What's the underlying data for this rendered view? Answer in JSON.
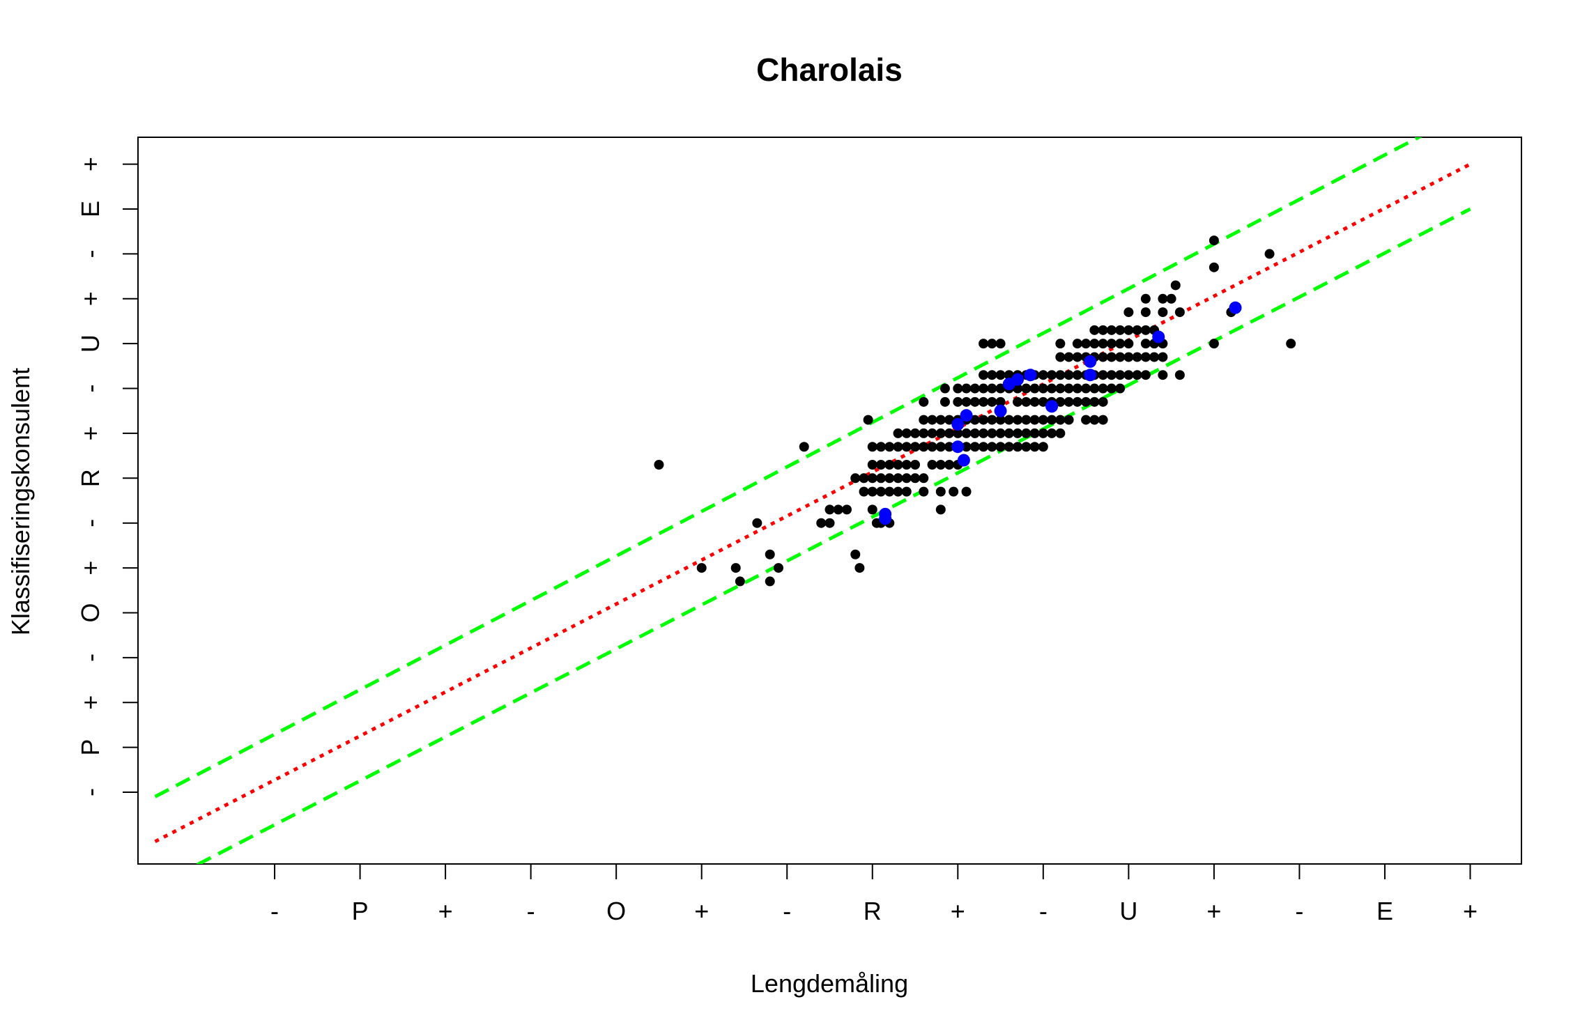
{
  "chart_data": {
    "type": "scatter",
    "title": "Charolais",
    "xlabel": "Lengdemåling",
    "ylabel": "Klassifiseringskonsulent",
    "x_ticks": [
      {
        "value": 1,
        "label": "-"
      },
      {
        "value": 2,
        "label": "P"
      },
      {
        "value": 3,
        "label": "+"
      },
      {
        "value": 4,
        "label": "-"
      },
      {
        "value": 5,
        "label": "O"
      },
      {
        "value": 6,
        "label": "+"
      },
      {
        "value": 7,
        "label": "-"
      },
      {
        "value": 8,
        "label": "R"
      },
      {
        "value": 9,
        "label": "+"
      },
      {
        "value": 10,
        "label": "-"
      },
      {
        "value": 11,
        "label": "U"
      },
      {
        "value": 12,
        "label": "+"
      },
      {
        "value": 13,
        "label": "-"
      },
      {
        "value": 14,
        "label": "E"
      },
      {
        "value": 15,
        "label": "+"
      }
    ],
    "y_ticks": [
      {
        "value": 1,
        "label": "-"
      },
      {
        "value": 2,
        "label": "P"
      },
      {
        "value": 3,
        "label": "+"
      },
      {
        "value": 4,
        "label": "-"
      },
      {
        "value": 5,
        "label": "O"
      },
      {
        "value": 6,
        "label": "+"
      },
      {
        "value": 7,
        "label": "-"
      },
      {
        "value": 8,
        "label": "R"
      },
      {
        "value": 9,
        "label": "+"
      },
      {
        "value": 10,
        "label": "-"
      },
      {
        "value": 11,
        "label": "U"
      },
      {
        "value": 12,
        "label": "+"
      },
      {
        "value": 13,
        "label": "-"
      },
      {
        "value": 14,
        "label": "E"
      },
      {
        "value": 15,
        "label": "+"
      }
    ],
    "xlim": [
      -0.6,
      15.6
    ],
    "ylim": [
      -0.6,
      15.6
    ],
    "grid": false,
    "series": [
      {
        "color": "#000000",
        "marker": "filled-circle",
        "points": [
          [
            5.5,
            8.3
          ],
          [
            6,
            6
          ],
          [
            6.4,
            6
          ],
          [
            6.45,
            5.7
          ],
          [
            6.65,
            7
          ],
          [
            6.8,
            5.7
          ],
          [
            6.8,
            6.3
          ],
          [
            6.9,
            6
          ],
          [
            7.2,
            8.7
          ],
          [
            7.4,
            7
          ],
          [
            7.5,
            7
          ],
          [
            7.5,
            7.3
          ],
          [
            7.6,
            7.3
          ],
          [
            7.7,
            7.3
          ],
          [
            7.8,
            6.3
          ],
          [
            7.85,
            6
          ],
          [
            7.95,
            9.3
          ],
          [
            7.8,
            8
          ],
          [
            7.9,
            8
          ],
          [
            8.0,
            8
          ],
          [
            8.1,
            8
          ],
          [
            8.2,
            8
          ],
          [
            8.3,
            8
          ],
          [
            8.4,
            8
          ],
          [
            8.5,
            8
          ],
          [
            8.6,
            8
          ],
          [
            7.9,
            7.7
          ],
          [
            8.0,
            7.7
          ],
          [
            8.1,
            7.7
          ],
          [
            8.2,
            7.7
          ],
          [
            8.3,
            7.7
          ],
          [
            8.4,
            7.7
          ],
          [
            8.6,
            7.7
          ],
          [
            8.0,
            7.3
          ],
          [
            8.05,
            7.0
          ],
          [
            8.1,
            7.0
          ],
          [
            8.2,
            7.0
          ],
          [
            8.0,
            8.3
          ],
          [
            8.1,
            8.3
          ],
          [
            8.2,
            8.3
          ],
          [
            8.3,
            8.3
          ],
          [
            8.4,
            8.3
          ],
          [
            8.5,
            8.3
          ],
          [
            8.7,
            8.3
          ],
          [
            8.8,
            8.3
          ],
          [
            8.9,
            8.3
          ],
          [
            9.0,
            8.3
          ],
          [
            8.8,
            7.7
          ],
          [
            8.95,
            7.7
          ],
          [
            9.1,
            7.7
          ],
          [
            8.8,
            7.3
          ],
          [
            8.0,
            8.7
          ],
          [
            8.1,
            8.7
          ],
          [
            8.2,
            8.7
          ],
          [
            8.3,
            8.7
          ],
          [
            8.4,
            8.7
          ],
          [
            8.5,
            8.7
          ],
          [
            8.6,
            8.7
          ],
          [
            8.7,
            8.7
          ],
          [
            8.8,
            8.7
          ],
          [
            8.9,
            8.7
          ],
          [
            9.0,
            8.7
          ],
          [
            9.1,
            8.7
          ],
          [
            9.2,
            8.7
          ],
          [
            9.3,
            8.7
          ],
          [
            9.4,
            8.7
          ],
          [
            9.5,
            8.7
          ],
          [
            9.6,
            8.7
          ],
          [
            9.7,
            8.7
          ],
          [
            9.8,
            8.7
          ],
          [
            9.9,
            8.7
          ],
          [
            10.0,
            8.7
          ],
          [
            8.3,
            9.0
          ],
          [
            8.4,
            9.0
          ],
          [
            8.5,
            9.0
          ],
          [
            8.6,
            9.0
          ],
          [
            8.7,
            9.0
          ],
          [
            8.8,
            9.0
          ],
          [
            8.9,
            9.0
          ],
          [
            9.0,
            9.0
          ],
          [
            9.1,
            9.0
          ],
          [
            9.2,
            9.0
          ],
          [
            9.3,
            9.0
          ],
          [
            9.4,
            9.0
          ],
          [
            9.5,
            9.0
          ],
          [
            9.6,
            9.0
          ],
          [
            9.7,
            9.0
          ],
          [
            9.8,
            9.0
          ],
          [
            9.9,
            9.0
          ],
          [
            10.0,
            9.0
          ],
          [
            10.1,
            9.0
          ],
          [
            10.2,
            9.0
          ],
          [
            8.6,
            9.3
          ],
          [
            8.7,
            9.3
          ],
          [
            8.8,
            9.3
          ],
          [
            8.9,
            9.3
          ],
          [
            9.0,
            9.3
          ],
          [
            9.1,
            9.3
          ],
          [
            9.2,
            9.3
          ],
          [
            9.3,
            9.3
          ],
          [
            9.4,
            9.3
          ],
          [
            9.5,
            9.3
          ],
          [
            9.6,
            9.3
          ],
          [
            9.7,
            9.3
          ],
          [
            9.8,
            9.3
          ],
          [
            9.9,
            9.3
          ],
          [
            10.0,
            9.3
          ],
          [
            10.1,
            9.3
          ],
          [
            10.2,
            9.3
          ],
          [
            10.3,
            9.3
          ],
          [
            10.5,
            9.3
          ],
          [
            10.6,
            9.3
          ],
          [
            10.7,
            9.3
          ],
          [
            8.6,
            9.7
          ],
          [
            8.85,
            9.7
          ],
          [
            9.0,
            9.7
          ],
          [
            9.1,
            9.7
          ],
          [
            9.2,
            9.7
          ],
          [
            9.3,
            9.7
          ],
          [
            9.4,
            9.7
          ],
          [
            9.5,
            9.7
          ],
          [
            9.7,
            9.7
          ],
          [
            9.8,
            9.7
          ],
          [
            9.9,
            9.7
          ],
          [
            10.0,
            9.7
          ],
          [
            10.1,
            9.7
          ],
          [
            10.2,
            9.7
          ],
          [
            10.3,
            9.7
          ],
          [
            10.4,
            9.7
          ],
          [
            10.5,
            9.7
          ],
          [
            10.6,
            9.7
          ],
          [
            10.7,
            9.7
          ],
          [
            8.85,
            10.0
          ],
          [
            9.0,
            10.0
          ],
          [
            9.1,
            10.0
          ],
          [
            9.2,
            10.0
          ],
          [
            9.3,
            10.0
          ],
          [
            9.4,
            10.0
          ],
          [
            9.5,
            10.0
          ],
          [
            9.6,
            10.0
          ],
          [
            9.7,
            10.0
          ],
          [
            9.8,
            10.0
          ],
          [
            9.9,
            10.0
          ],
          [
            10.0,
            10.0
          ],
          [
            10.1,
            10.0
          ],
          [
            10.2,
            10.0
          ],
          [
            10.3,
            10.0
          ],
          [
            10.4,
            10.0
          ],
          [
            10.5,
            10.0
          ],
          [
            10.6,
            10.0
          ],
          [
            10.7,
            10.0
          ],
          [
            10.8,
            10.0
          ],
          [
            10.9,
            10.0
          ],
          [
            10.2,
            10.7
          ],
          [
            10.3,
            10.7
          ],
          [
            10.4,
            10.7
          ],
          [
            10.5,
            10.7
          ],
          [
            10.6,
            10.7
          ],
          [
            10.7,
            10.7
          ],
          [
            10.8,
            10.7
          ],
          [
            10.9,
            10.7
          ],
          [
            11.0,
            10.7
          ],
          [
            11.1,
            10.7
          ],
          [
            11.2,
            10.7
          ],
          [
            11.3,
            10.7
          ],
          [
            11.4,
            10.7
          ],
          [
            9.3,
            10.3
          ],
          [
            9.4,
            10.3
          ],
          [
            9.5,
            10.3
          ],
          [
            9.6,
            10.3
          ],
          [
            9.7,
            10.3
          ],
          [
            9.8,
            10.3
          ],
          [
            9.9,
            10.3
          ],
          [
            10.0,
            10.3
          ],
          [
            10.1,
            10.3
          ],
          [
            10.2,
            10.3
          ],
          [
            10.3,
            10.3
          ],
          [
            10.4,
            10.3
          ],
          [
            10.5,
            10.3
          ],
          [
            10.6,
            10.3
          ],
          [
            10.7,
            10.3
          ],
          [
            10.8,
            10.3
          ],
          [
            10.9,
            10.3
          ],
          [
            11.0,
            10.3
          ],
          [
            11.1,
            10.3
          ],
          [
            11.2,
            10.3
          ],
          [
            11.4,
            10.3
          ],
          [
            11.6,
            10.3
          ],
          [
            9.3,
            11.0
          ],
          [
            9.4,
            11.0
          ],
          [
            9.5,
            11.0
          ],
          [
            10.2,
            11.0
          ],
          [
            10.4,
            11.0
          ],
          [
            10.5,
            11.0
          ],
          [
            10.6,
            11.0
          ],
          [
            10.7,
            11.0
          ],
          [
            10.8,
            11.0
          ],
          [
            10.9,
            11.0
          ],
          [
            11.0,
            11.0
          ],
          [
            11.2,
            11.0
          ],
          [
            11.3,
            11.0
          ],
          [
            11.4,
            11.0
          ],
          [
            10.6,
            11.3
          ],
          [
            10.7,
            11.3
          ],
          [
            10.8,
            11.3
          ],
          [
            10.9,
            11.3
          ],
          [
            11.0,
            11.3
          ],
          [
            11.1,
            11.3
          ],
          [
            11.2,
            11.3
          ],
          [
            11.3,
            11.3
          ],
          [
            11.0,
            11.7
          ],
          [
            11.2,
            11.7
          ],
          [
            11.4,
            11.7
          ],
          [
            11.6,
            11.7
          ],
          [
            11.2,
            12.0
          ],
          [
            11.4,
            12.0
          ],
          [
            11.5,
            12.0
          ],
          [
            11.55,
            12.3
          ],
          [
            12.0,
            11.0
          ],
          [
            12.2,
            11.7
          ],
          [
            12.0,
            13.3
          ],
          [
            12.0,
            12.7
          ],
          [
            12.65,
            13.0
          ],
          [
            12.9,
            11.0
          ]
        ]
      },
      {
        "color": "#0000ff",
        "marker": "filled-circle",
        "points": [
          [
            8.15,
            7.1
          ],
          [
            8.15,
            7.2
          ],
          [
            9.0,
            8.7
          ],
          [
            9.07,
            8.4
          ],
          [
            9.0,
            9.2
          ],
          [
            9.1,
            9.4
          ],
          [
            9.5,
            9.5
          ],
          [
            9.6,
            10.1
          ],
          [
            9.7,
            10.2
          ],
          [
            9.85,
            10.3
          ],
          [
            10.1,
            9.6
          ],
          [
            10.55,
            10.6
          ],
          [
            10.55,
            10.3
          ],
          [
            11.35,
            11.15
          ],
          [
            12.25,
            11.8
          ]
        ]
      }
    ],
    "lines": [
      {
        "color": "#ff0000",
        "style": "dotted",
        "x": [
          -0.4,
          15.0
        ],
        "y": [
          -0.1,
          15.0
        ]
      },
      {
        "color": "#00ff00",
        "style": "dashed",
        "x": [
          -0.4,
          15.0
        ],
        "y": [
          0.9,
          16.2
        ]
      },
      {
        "color": "#00ff00",
        "style": "dashed",
        "x": [
          -0.4,
          15.0
        ],
        "y": [
          -1.1,
          14.0
        ]
      }
    ]
  }
}
